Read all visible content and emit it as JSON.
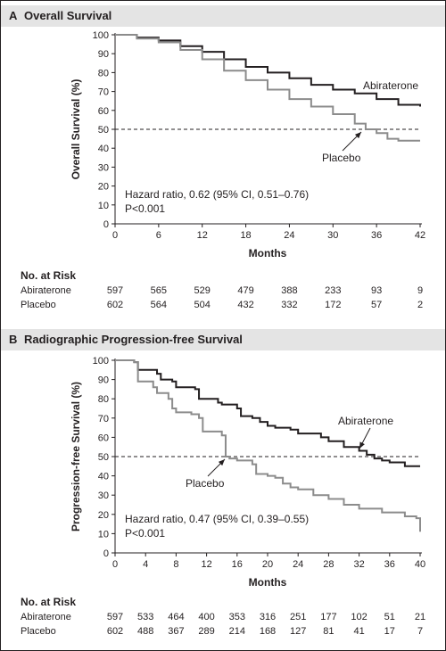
{
  "panels": [
    {
      "letter": "A",
      "title": "Overall Survival",
      "risk_title": "No. at Risk",
      "risk_table": [
        {
          "label": "Abiraterone",
          "values": [
            "597",
            "565",
            "529",
            "479",
            "388",
            "233",
            "93",
            "9"
          ]
        },
        {
          "label": "Placebo",
          "values": [
            "602",
            "564",
            "504",
            "432",
            "332",
            "172",
            "57",
            "2"
          ]
        }
      ]
    },
    {
      "letter": "B",
      "title": "Radiographic Progression-free Survival",
      "risk_title": "No. at Risk",
      "risk_table": [
        {
          "label": "Abiraterone",
          "values": [
            "597",
            "533",
            "464",
            "400",
            "353",
            "316",
            "251",
            "177",
            "102",
            "51",
            "21"
          ]
        },
        {
          "label": "Placebo",
          "values": [
            "602",
            "488",
            "367",
            "289",
            "214",
            "168",
            "127",
            "81",
            "41",
            "17",
            "7"
          ]
        }
      ]
    }
  ],
  "chart_data": [
    {
      "type": "line",
      "title": "Overall Survival",
      "xlabel": "Months",
      "ylabel": "Overall Survival (%)",
      "xlim": [
        0,
        42
      ],
      "ylim": [
        0,
        100
      ],
      "xticks": [
        0,
        6,
        12,
        18,
        24,
        30,
        36,
        42
      ],
      "yticks": [
        0,
        10,
        20,
        30,
        40,
        50,
        60,
        70,
        80,
        90,
        100
      ],
      "reference_line": {
        "y": 50,
        "style": "dashed"
      },
      "annotations": [
        "Hazard ratio, 0.62 (95% CI, 0.51–0.76)",
        "P<0.001"
      ],
      "series": [
        {
          "name": "Abiraterone",
          "color": "#231f20",
          "x": [
            0,
            3,
            6,
            9,
            12,
            15,
            18,
            21,
            24,
            27,
            30,
            33,
            36,
            39,
            42
          ],
          "y": [
            100,
            98.5,
            97,
            94,
            91,
            87,
            83,
            80,
            77,
            73.5,
            71,
            69,
            66,
            63,
            62
          ]
        },
        {
          "name": "Placebo",
          "color": "#8c8c8c",
          "x": [
            0,
            3,
            6,
            9,
            12,
            15,
            18,
            21,
            24,
            27,
            30,
            33,
            34.5,
            36,
            37.5,
            39,
            42
          ],
          "y": [
            100,
            98,
            96,
            92,
            87,
            81,
            76,
            71,
            66,
            62,
            58,
            53,
            50,
            48,
            45,
            44,
            44
          ]
        }
      ]
    },
    {
      "type": "line",
      "title": "Radiographic Progression-free Survival",
      "xlabel": "Months",
      "ylabel": "Progression-free Survival (%)",
      "xlim": [
        0,
        40
      ],
      "ylim": [
        0,
        100
      ],
      "xticks": [
        0,
        4,
        8,
        12,
        16,
        20,
        24,
        28,
        32,
        36,
        40
      ],
      "yticks": [
        0,
        10,
        20,
        30,
        40,
        50,
        60,
        70,
        80,
        90,
        100
      ],
      "reference_line": {
        "y": 50,
        "style": "dashed"
      },
      "annotations": [
        "Hazard ratio, 0.47 (95% CI, 0.39–0.55)",
        "P<0.001"
      ],
      "series": [
        {
          "name": "Abiraterone",
          "color": "#231f20",
          "x": [
            0,
            2.5,
            3,
            5.5,
            6,
            7.5,
            8,
            10.5,
            11,
            13.5,
            14,
            16,
            16.5,
            18,
            19,
            20,
            21,
            23,
            24,
            27,
            28,
            30,
            32,
            33,
            34,
            35,
            36,
            38,
            40
          ],
          "y": [
            100,
            99,
            95,
            93,
            90,
            89,
            86,
            85,
            80,
            78,
            77,
            75,
            71,
            70,
            68,
            66,
            65,
            64,
            62,
            60,
            58,
            55,
            53,
            51,
            49,
            48,
            47,
            45,
            45
          ]
        },
        {
          "name": "Placebo",
          "color": "#8c8c8c",
          "x": [
            0,
            2.5,
            3,
            5,
            5.5,
            7,
            7.5,
            8,
            10,
            11,
            11.5,
            14,
            14.5,
            15,
            16,
            18,
            18.5,
            20,
            21,
            22,
            23,
            24,
            26,
            28,
            30,
            32,
            35,
            38,
            39.5,
            40
          ],
          "y": [
            100,
            99,
            89,
            86,
            83,
            80,
            75,
            73,
            72,
            70,
            63,
            61,
            50,
            49,
            48,
            46,
            41,
            40,
            39,
            36,
            34,
            33,
            30,
            28,
            25,
            23,
            21,
            19,
            18,
            11
          ]
        }
      ]
    }
  ]
}
